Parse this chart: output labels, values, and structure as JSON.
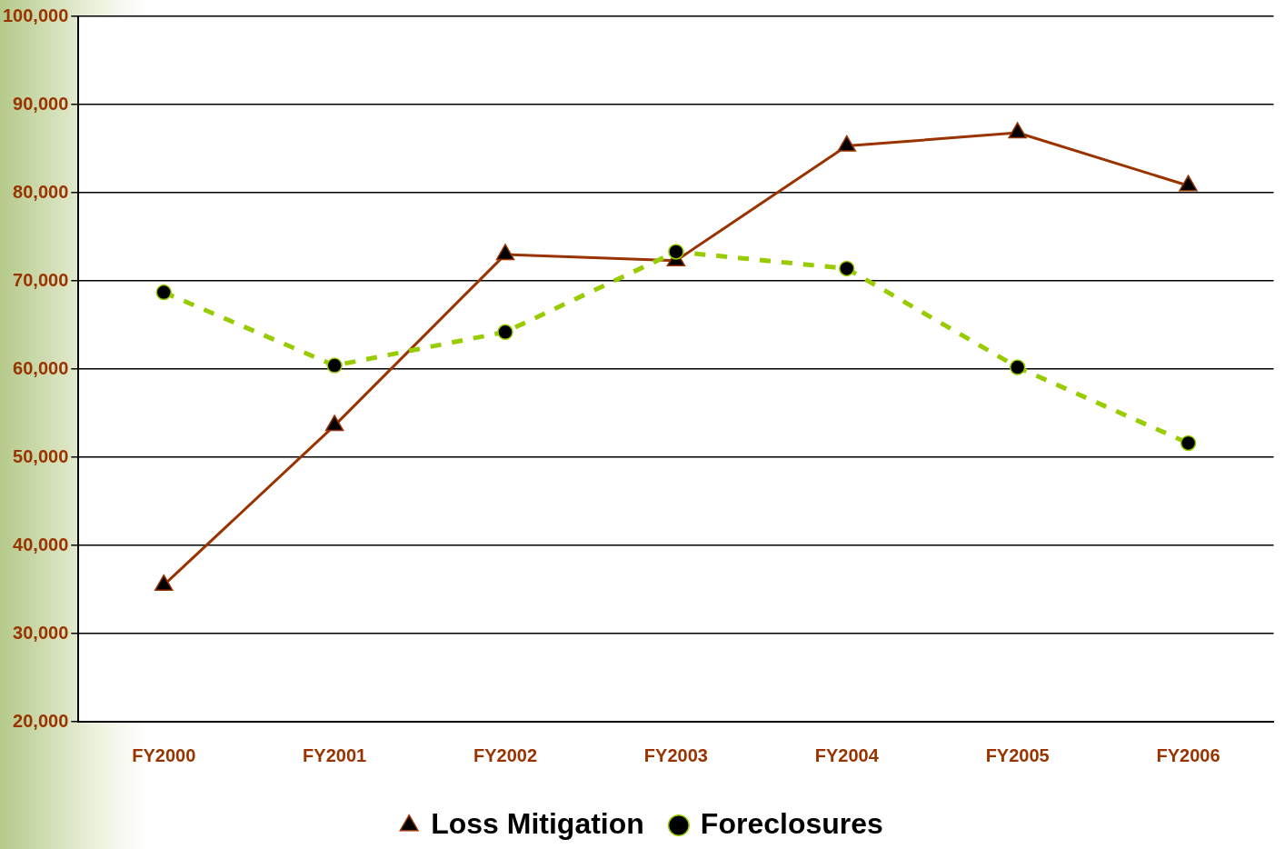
{
  "chart_data": {
    "type": "line",
    "categories": [
      "FY2000",
      "FY2001",
      "FY2002",
      "FY2003",
      "FY2004",
      "FY2005",
      "FY2006"
    ],
    "series": [
      {
        "name": "Loss Mitigation",
        "color": "#993300",
        "marker": "triangle",
        "line_style": "solid",
        "values": [
          35500,
          53600,
          73000,
          72300,
          85300,
          86800,
          80800
        ]
      },
      {
        "name": "Foreclosures",
        "color": "#99cc00",
        "marker": "circle",
        "line_style": "dashed",
        "values": [
          68700,
          60400,
          64200,
          73300,
          71400,
          60200,
          51600
        ]
      }
    ],
    "ylim": [
      20000,
      100000
    ],
    "yticks": [
      {
        "value": 20000,
        "label": "20,000"
      },
      {
        "value": 30000,
        "label": "30,000"
      },
      {
        "value": 40000,
        "label": "40,000"
      },
      {
        "value": 50000,
        "label": "50,000"
      },
      {
        "value": 60000,
        "label": "60,000"
      },
      {
        "value": 70000,
        "label": "70,000"
      },
      {
        "value": 80000,
        "label": "80,000"
      },
      {
        "value": 90000,
        "label": "90,000"
      },
      {
        "value": 100000,
        "label": "100,000"
      }
    ],
    "grid": "y",
    "legend": "bottom"
  }
}
